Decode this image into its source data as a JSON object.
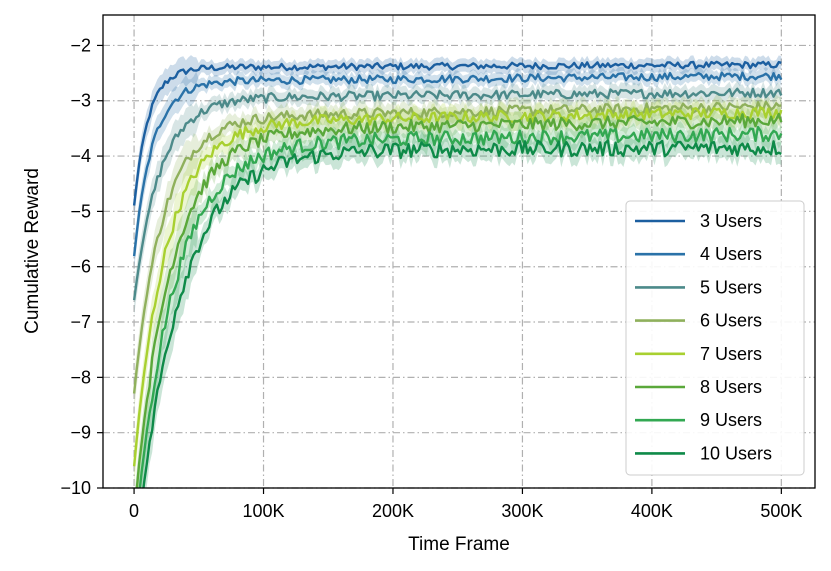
{
  "chart_data": {
    "type": "line",
    "xlabel": "Time Frame",
    "ylabel": "Cumulative Reward",
    "xlim": [
      -24000,
      526000
    ],
    "ylim": [
      -10,
      -1.45
    ],
    "xticks": [
      0,
      100000,
      200000,
      300000,
      400000,
      500000
    ],
    "xtick_labels": [
      "0",
      "100K",
      "200K",
      "300K",
      "400K",
      "500K"
    ],
    "yticks": [
      -10,
      -9,
      -8,
      -7,
      -6,
      -5,
      -4,
      -3,
      -2
    ],
    "ytick_labels": [
      "−10",
      "−9",
      "−8",
      "−7",
      "−6",
      "−5",
      "−4",
      "−3",
      "−2"
    ],
    "grid": true,
    "legend_position": "lower-right",
    "series": [
      {
        "name": "3 Users",
        "color": "#1c5fa0",
        "start": -4.9,
        "plateau": -2.4,
        "final": -2.35,
        "k": 9e-05,
        "band": 0.12
      },
      {
        "name": "4 Users",
        "color": "#2a72a8",
        "start": -5.8,
        "plateau": -2.65,
        "final": -2.55,
        "k": 7e-05,
        "band": 0.12
      },
      {
        "name": "5 Users",
        "color": "#4c8a8a",
        "start": -6.6,
        "plateau": -2.95,
        "final": -2.85,
        "k": 5e-05,
        "band": 0.14
      },
      {
        "name": "6 Users",
        "color": "#8fb05c",
        "start": -8.3,
        "plateau": -3.3,
        "final": -3.1,
        "k": 4.5e-05,
        "band": 0.16
      },
      {
        "name": "7 Users",
        "color": "#a8d030",
        "start": -9.6,
        "plateau": -3.4,
        "final": -3.2,
        "k": 4e-05,
        "band": 0.17
      },
      {
        "name": "8 Users",
        "color": "#5aa83a",
        "start": -10.5,
        "plateau": -3.55,
        "final": -3.35,
        "k": 3.6e-05,
        "band": 0.18
      },
      {
        "name": "9 Users",
        "color": "#32a852",
        "start": -11.0,
        "plateau": -3.75,
        "final": -3.6,
        "k": 3.3e-05,
        "band": 0.18
      },
      {
        "name": "10 Users",
        "color": "#0e8a48",
        "start": -11.5,
        "plateau": -3.9,
        "final": -3.85,
        "k": 3e-05,
        "band": 0.2
      }
    ]
  }
}
